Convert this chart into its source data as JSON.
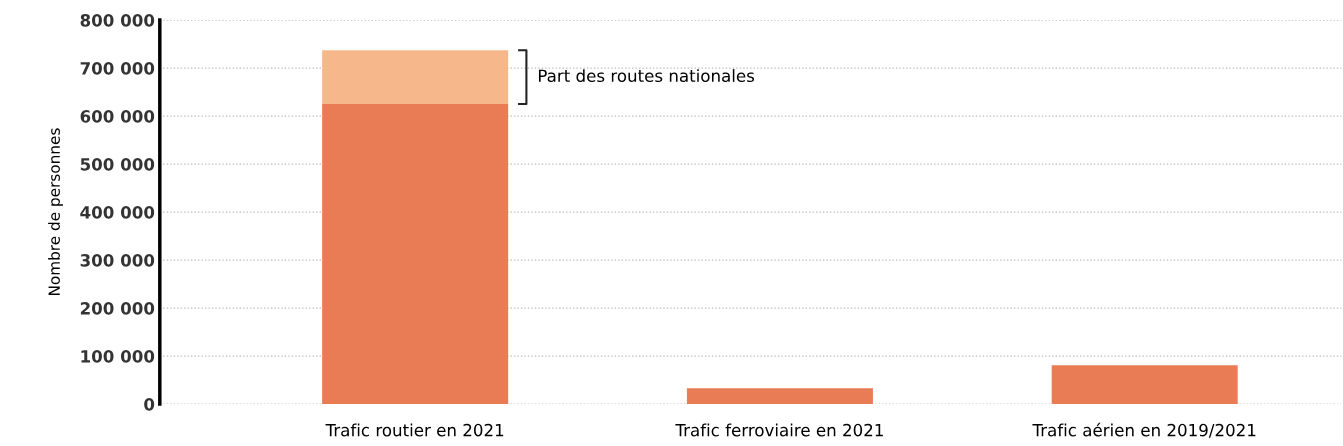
{
  "chart_data": {
    "type": "bar",
    "stacked": true,
    "ylabel": "Nombre de personnes",
    "categories": [
      "Trafic routier en 2021",
      "Trafic ferroviaire en 2021",
      "Trafic aérien en 2019/2021"
    ],
    "series": [
      {
        "color": "#e97b55",
        "values": [
          625000,
          33000,
          81000
        ]
      },
      {
        "color": "#f6b88b",
        "values": [
          112000,
          null,
          null
        ]
      }
    ],
    "ylim": [
      0,
      800000
    ],
    "yticks": [
      0,
      {
        "value": 100000,
        "label": "100 000"
      },
      {
        "value": 200000,
        "label": "200 000"
      },
      {
        "value": 300000,
        "label": "300 000"
      },
      {
        "value": 400000,
        "label": "400 000"
      },
      {
        "value": 500000,
        "label": "500 000"
      },
      {
        "value": 600000,
        "label": "600 000"
      },
      {
        "value": 700000,
        "label": "700 000"
      },
      {
        "value": 800000,
        "label": "800 000"
      }
    ],
    "grid": "y",
    "annotations": [
      "Part des routes nationales"
    ]
  }
}
